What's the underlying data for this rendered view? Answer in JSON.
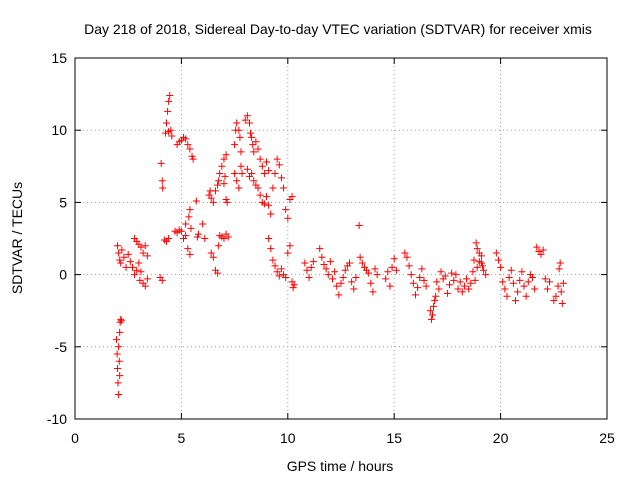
{
  "chart_data": {
    "type": "scatter",
    "title": "Day 218 of 2018, Sidereal Day-to-day VTEC variation (SDTVAR) for receiver xmis",
    "xlabel": "GPS time / hours",
    "ylabel": "SDTVAR / TECUs",
    "xlim": [
      0,
      25
    ],
    "ylim": [
      -10,
      15
    ],
    "xticks": [
      0,
      5,
      10,
      15,
      20,
      25
    ],
    "yticks": [
      -10,
      -5,
      0,
      5,
      10,
      15
    ],
    "xtick_labels": [
      "0",
      "5",
      "10",
      "15",
      "20",
      "25"
    ],
    "ytick_labels": [
      "-10",
      "-5",
      "0",
      "5",
      "10",
      "15"
    ],
    "grid": true,
    "marker": "+",
    "color": "#ff0000",
    "series": [
      {
        "name": "SDTVAR",
        "points": [
          [
            1.95,
            -4.5
          ],
          [
            1.98,
            -5.5
          ],
          [
            2.0,
            -6.5
          ],
          [
            2.02,
            -7.5
          ],
          [
            2.05,
            -8.3
          ],
          [
            2.08,
            -6.0
          ],
          [
            2.1,
            -4.0
          ],
          [
            2.12,
            -3.3
          ],
          [
            2.15,
            -3.1
          ],
          [
            2.05,
            -5.0
          ],
          [
            2.1,
            -7.0
          ],
          [
            2.18,
            -3.2
          ],
          [
            2.0,
            2.0
          ],
          [
            2.05,
            1.5
          ],
          [
            2.1,
            1.0
          ],
          [
            2.15,
            0.8
          ],
          [
            2.2,
            1.7
          ],
          [
            2.3,
            1.2
          ],
          [
            2.4,
            0.5
          ],
          [
            2.5,
            1.4
          ],
          [
            2.6,
            0.9
          ],
          [
            2.7,
            0.5
          ],
          [
            2.8,
            0.0
          ],
          [
            2.9,
            0.3
          ],
          [
            3.0,
            0.8
          ],
          [
            3.05,
            -0.4
          ],
          [
            3.1,
            0.2
          ],
          [
            3.2,
            -0.6
          ],
          [
            3.3,
            -0.8
          ],
          [
            3.4,
            -0.3
          ],
          [
            2.8,
            2.5
          ],
          [
            2.9,
            2.3
          ],
          [
            3.0,
            2.1
          ],
          [
            3.1,
            1.9
          ],
          [
            3.2,
            1.5
          ],
          [
            3.3,
            2.0
          ],
          [
            3.4,
            1.3
          ],
          [
            4.05,
            7.7
          ],
          [
            4.1,
            6.5
          ],
          [
            4.12,
            6.0
          ],
          [
            4.0,
            -0.2
          ],
          [
            4.1,
            -0.4
          ],
          [
            4.2,
            2.4
          ],
          [
            4.3,
            2.3
          ],
          [
            4.4,
            2.5
          ],
          [
            4.25,
            9.8
          ],
          [
            4.3,
            10.5
          ],
          [
            4.35,
            11.3
          ],
          [
            4.4,
            12.0
          ],
          [
            4.45,
            12.4
          ],
          [
            4.5,
            10.0
          ],
          [
            4.4,
            9.9
          ],
          [
            4.55,
            9.6
          ],
          [
            4.8,
            9.0
          ],
          [
            4.9,
            9.2
          ],
          [
            5.0,
            9.3
          ],
          [
            5.1,
            9.5
          ],
          [
            5.2,
            9.4
          ],
          [
            5.3,
            9.0
          ],
          [
            5.4,
            8.7
          ],
          [
            5.5,
            8.2
          ],
          [
            5.55,
            8.0
          ],
          [
            4.7,
            3.0
          ],
          [
            4.8,
            2.9
          ],
          [
            4.9,
            3.1
          ],
          [
            5.0,
            3.0
          ],
          [
            5.1,
            2.5
          ],
          [
            5.2,
            2.7
          ],
          [
            5.3,
            1.8
          ],
          [
            5.4,
            1.4
          ],
          [
            5.2,
            3.5
          ],
          [
            5.35,
            4.0
          ],
          [
            5.4,
            4.5
          ],
          [
            5.45,
            3.2
          ],
          [
            5.7,
            5.1
          ],
          [
            5.75,
            2.6
          ],
          [
            5.8,
            2.8
          ],
          [
            6.0,
            3.5
          ],
          [
            6.1,
            2.5
          ],
          [
            6.3,
            5.5
          ],
          [
            6.35,
            5.8
          ],
          [
            6.4,
            5.3
          ],
          [
            6.5,
            5.0
          ],
          [
            6.6,
            5.8
          ],
          [
            6.7,
            6.2
          ],
          [
            6.75,
            6.5
          ],
          [
            6.8,
            7.0
          ],
          [
            6.9,
            7.5
          ],
          [
            7.0,
            8.0
          ],
          [
            7.1,
            8.3
          ],
          [
            7.0,
            6.3
          ],
          [
            7.05,
            6.8
          ],
          [
            7.1,
            5.2
          ],
          [
            7.15,
            5.0
          ],
          [
            6.4,
            1.5
          ],
          [
            6.5,
            1.2
          ],
          [
            6.6,
            0.3
          ],
          [
            6.7,
            0.1
          ],
          [
            6.75,
            2.0
          ],
          [
            6.8,
            2.7
          ],
          [
            6.9,
            2.6
          ],
          [
            7.0,
            2.5
          ],
          [
            7.1,
            2.8
          ],
          [
            7.2,
            2.6
          ],
          [
            7.5,
            9.0
          ],
          [
            7.55,
            10.0
          ],
          [
            7.6,
            10.5
          ],
          [
            7.7,
            10.0
          ],
          [
            7.75,
            9.5
          ],
          [
            7.8,
            8.5
          ],
          [
            7.5,
            7.0
          ],
          [
            7.6,
            6.5
          ],
          [
            7.7,
            6.0
          ],
          [
            7.8,
            7.5
          ],
          [
            7.85,
            7.0
          ],
          [
            8.0,
            10.7
          ],
          [
            8.1,
            11.0
          ],
          [
            8.2,
            10.5
          ],
          [
            8.25,
            9.8
          ],
          [
            8.3,
            9.5
          ],
          [
            8.35,
            9.0
          ],
          [
            8.4,
            8.5
          ],
          [
            8.5,
            9.2
          ],
          [
            8.6,
            8.7
          ],
          [
            8.7,
            8.0
          ],
          [
            8.8,
            7.5
          ],
          [
            8.9,
            7.0
          ],
          [
            9.0,
            7.8
          ],
          [
            9.1,
            7.2
          ],
          [
            8.1,
            7.3
          ],
          [
            8.2,
            6.8
          ],
          [
            8.3,
            7.0
          ],
          [
            8.4,
            6.5
          ],
          [
            8.5,
            6.2
          ],
          [
            8.6,
            6.0
          ],
          [
            8.7,
            5.5
          ],
          [
            8.8,
            5.0
          ],
          [
            8.9,
            4.9
          ],
          [
            9.0,
            5.4
          ],
          [
            9.1,
            4.8
          ],
          [
            9.2,
            4.2
          ],
          [
            9.3,
            6.0
          ],
          [
            9.4,
            7.0
          ],
          [
            9.5,
            8.0
          ],
          [
            9.6,
            7.6
          ],
          [
            9.7,
            6.7
          ],
          [
            9.8,
            6.0
          ],
          [
            9.9,
            4.5
          ],
          [
            10.0,
            3.9
          ],
          [
            10.1,
            5.2
          ],
          [
            10.2,
            5.4
          ],
          [
            9.1,
            2.5
          ],
          [
            9.2,
            1.8
          ],
          [
            9.3,
            1.0
          ],
          [
            9.4,
            0.6
          ],
          [
            9.5,
            0.2
          ],
          [
            9.6,
            -0.1
          ],
          [
            9.7,
            0.4
          ],
          [
            9.8,
            0.0
          ],
          [
            9.9,
            -0.2
          ],
          [
            10.0,
            1.5
          ],
          [
            10.1,
            2.0
          ],
          [
            10.2,
            -0.5
          ],
          [
            10.25,
            -0.9
          ],
          [
            10.3,
            -0.7
          ],
          [
            10.8,
            0.8
          ],
          [
            10.9,
            0.3
          ],
          [
            11.0,
            -0.2
          ],
          [
            11.1,
            0.5
          ],
          [
            11.2,
            0.9
          ],
          [
            11.5,
            1.8
          ],
          [
            11.6,
            1.2
          ],
          [
            11.7,
            0.7
          ],
          [
            11.8,
            0.4
          ],
          [
            11.9,
            0.0
          ],
          [
            12.0,
            0.9
          ],
          [
            12.1,
            -0.3
          ],
          [
            12.2,
            0.2
          ],
          [
            12.3,
            -0.8
          ],
          [
            12.4,
            -1.4
          ],
          [
            12.5,
            -0.6
          ],
          [
            12.6,
            -0.2
          ],
          [
            12.7,
            0.3
          ],
          [
            12.8,
            0.6
          ],
          [
            12.9,
            0.8
          ],
          [
            13.0,
            -0.5
          ],
          [
            13.1,
            -1.0
          ],
          [
            13.2,
            -0.2
          ],
          [
            13.35,
            3.4
          ],
          [
            13.4,
            1.2
          ],
          [
            13.5,
            0.8
          ],
          [
            13.6,
            0.5
          ],
          [
            13.7,
            0.3
          ],
          [
            13.8,
            0.1
          ],
          [
            13.9,
            -0.6
          ],
          [
            14.0,
            -1.2
          ],
          [
            14.1,
            0.4
          ],
          [
            14.2,
            0.0
          ],
          [
            14.6,
            -0.3
          ],
          [
            14.7,
            0.2
          ],
          [
            14.8,
            -0.8
          ],
          [
            14.9,
            0.5
          ],
          [
            15.0,
            1.1
          ],
          [
            15.1,
            0.3
          ],
          [
            15.5,
            1.5
          ],
          [
            15.6,
            1.2
          ],
          [
            15.7,
            0.6
          ],
          [
            15.8,
            0.0
          ],
          [
            15.9,
            -0.6
          ],
          [
            16.0,
            -1.4
          ],
          [
            16.1,
            -0.9
          ],
          [
            16.2,
            -0.2
          ],
          [
            16.3,
            0.4
          ],
          [
            16.4,
            -0.4
          ],
          [
            16.5,
            -0.8
          ],
          [
            16.7,
            -2.5
          ],
          [
            16.75,
            -3.1
          ],
          [
            16.8,
            -2.8
          ],
          [
            16.85,
            -2.2
          ],
          [
            16.9,
            -1.8
          ],
          [
            16.95,
            -1.5
          ],
          [
            17.0,
            -0.5
          ],
          [
            17.1,
            -1.0
          ],
          [
            17.2,
            0.2
          ],
          [
            17.3,
            -0.3
          ],
          [
            17.4,
            -0.1
          ],
          [
            17.5,
            -1.3
          ],
          [
            17.6,
            -0.7
          ],
          [
            17.7,
            0.1
          ],
          [
            17.8,
            -0.4
          ],
          [
            17.9,
            0.0
          ],
          [
            18.0,
            -1.0
          ],
          [
            18.1,
            -0.5
          ],
          [
            18.2,
            -1.2
          ],
          [
            18.3,
            -0.8
          ],
          [
            18.4,
            -0.3
          ],
          [
            18.5,
            -1.0
          ],
          [
            18.6,
            -0.6
          ],
          [
            18.7,
            0.2
          ],
          [
            18.8,
            -0.4
          ],
          [
            18.9,
            0.5
          ],
          [
            19.0,
            1.5
          ],
          [
            19.1,
            0.8
          ],
          [
            19.2,
            0.3
          ],
          [
            19.3,
            0.0
          ],
          [
            18.85,
            2.2
          ],
          [
            18.9,
            1.8
          ],
          [
            19.0,
            0.9
          ],
          [
            19.1,
            1.3
          ],
          [
            19.15,
            0.6
          ],
          [
            18.75,
            1.0
          ],
          [
            19.8,
            1.5
          ],
          [
            19.9,
            1.0
          ],
          [
            20.0,
            0.5
          ],
          [
            20.1,
            -0.5
          ],
          [
            20.2,
            -1.0
          ],
          [
            20.3,
            -1.5
          ],
          [
            20.4,
            -0.2
          ],
          [
            20.5,
            0.3
          ],
          [
            20.6,
            -0.6
          ],
          [
            20.7,
            -1.8
          ],
          [
            20.8,
            -1.2
          ],
          [
            20.9,
            -0.4
          ],
          [
            21.0,
            0.2
          ],
          [
            21.1,
            -0.8
          ],
          [
            21.2,
            -1.5
          ],
          [
            21.3,
            -0.5
          ],
          [
            21.4,
            0.0
          ],
          [
            21.5,
            -0.2
          ],
          [
            21.6,
            -1.0
          ],
          [
            21.7,
            1.9
          ],
          [
            21.8,
            1.6
          ],
          [
            21.9,
            1.4
          ],
          [
            22.0,
            1.7
          ],
          [
            22.1,
            -0.3
          ],
          [
            22.2,
            -1.0
          ],
          [
            22.3,
            -0.5
          ],
          [
            22.5,
            -1.8
          ],
          [
            22.6,
            -1.5
          ],
          [
            22.7,
            -0.8
          ],
          [
            22.75,
            0.4
          ],
          [
            22.8,
            0.8
          ],
          [
            22.85,
            -1.2
          ],
          [
            22.9,
            -2.0
          ],
          [
            22.95,
            -0.6
          ]
        ]
      }
    ]
  }
}
